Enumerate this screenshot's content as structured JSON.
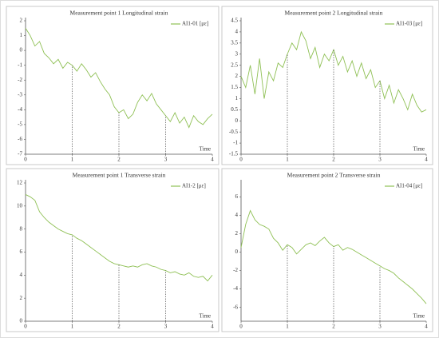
{
  "chart_data": [
    {
      "type": "line",
      "title": "Measurement point 1   Longitudinal strain",
      "x_label": "Time",
      "x": [
        0,
        0.1,
        0.2,
        0.3,
        0.4,
        0.5,
        0.6,
        0.7,
        0.8,
        0.9,
        1,
        1.1,
        1.2,
        1.3,
        1.4,
        1.5,
        1.6,
        1.7,
        1.8,
        1.9,
        2,
        2.1,
        2.2,
        2.3,
        2.4,
        2.5,
        2.6,
        2.7,
        2.8,
        2.9,
        3,
        3.1,
        3.2,
        3.3,
        3.4,
        3.5,
        3.6,
        3.7,
        3.8,
        3.9,
        4
      ],
      "series": [
        {
          "name": "AI1-01 [με]",
          "color": "#8fc055",
          "values": [
            1.5,
            1.0,
            0.3,
            0.6,
            -0.2,
            -0.5,
            -0.9,
            -0.6,
            -1.2,
            -0.8,
            -1.0,
            -1.4,
            -0.9,
            -1.3,
            -1.8,
            -1.5,
            -2.1,
            -2.6,
            -3.0,
            -3.8,
            -4.2,
            -4.0,
            -4.6,
            -4.3,
            -3.5,
            -3.0,
            -3.4,
            -2.9,
            -3.6,
            -4.0,
            -4.4,
            -4.8,
            -4.2,
            -4.9,
            -4.5,
            -5.2,
            -4.4,
            -4.8,
            -5.0,
            -4.6,
            -4.3
          ]
        }
      ],
      "xlim": [
        0,
        4
      ],
      "xticks": [
        0,
        1,
        2,
        3,
        4
      ],
      "ylim": [
        -7,
        2
      ],
      "yticks": [
        -7,
        -6,
        -5,
        -4,
        -3,
        -2,
        -1,
        0,
        1,
        2
      ],
      "vlines": [
        1,
        2,
        3
      ],
      "legend": "upper right"
    },
    {
      "type": "line",
      "title": "Measurement point 2   Longitudinal strain",
      "x_label": "Time",
      "x": [
        0,
        0.1,
        0.2,
        0.3,
        0.4,
        0.5,
        0.6,
        0.7,
        0.8,
        0.9,
        1,
        1.1,
        1.2,
        1.3,
        1.4,
        1.5,
        1.6,
        1.7,
        1.8,
        1.9,
        2,
        2.1,
        2.2,
        2.3,
        2.4,
        2.5,
        2.6,
        2.7,
        2.8,
        2.9,
        3,
        3.1,
        3.2,
        3.3,
        3.4,
        3.5,
        3.6,
        3.7,
        3.8,
        3.9,
        4
      ],
      "series": [
        {
          "name": "AI1-03 [με]",
          "color": "#8fc055",
          "values": [
            2.0,
            1.5,
            2.5,
            1.2,
            2.8,
            1.0,
            2.2,
            1.8,
            2.6,
            2.4,
            3.0,
            3.5,
            3.2,
            4.0,
            3.6,
            2.8,
            3.3,
            2.4,
            3.0,
            2.7,
            3.2,
            2.5,
            2.9,
            2.2,
            2.7,
            2.0,
            2.6,
            1.9,
            2.3,
            1.5,
            1.8,
            1.0,
            1.6,
            0.8,
            1.4,
            1.0,
            0.5,
            1.2,
            0.7,
            0.4,
            0.5
          ]
        }
      ],
      "xlim": [
        0,
        4
      ],
      "xticks": [
        0,
        1,
        2,
        3,
        4
      ],
      "ylim": [
        -1.5,
        4.5
      ],
      "yticks": [
        -1.5,
        -1,
        -0.5,
        0,
        0.5,
        1,
        1.5,
        2,
        2.5,
        3,
        3.5,
        4,
        4.5
      ],
      "vlines": [
        1,
        2,
        3
      ],
      "legend": "upper right"
    },
    {
      "type": "line",
      "title": "Measurement point 1   Transverse strain",
      "x_label": "Time",
      "x": [
        0,
        0.1,
        0.2,
        0.3,
        0.4,
        0.5,
        0.6,
        0.7,
        0.8,
        0.9,
        1,
        1.1,
        1.2,
        1.3,
        1.4,
        1.5,
        1.6,
        1.7,
        1.8,
        1.9,
        2,
        2.1,
        2.2,
        2.3,
        2.4,
        2.5,
        2.6,
        2.7,
        2.8,
        2.9,
        3,
        3.1,
        3.2,
        3.3,
        3.4,
        3.5,
        3.6,
        3.7,
        3.8,
        3.9,
        4
      ],
      "series": [
        {
          "name": "AI1-2 [με]",
          "color": "#8fc055",
          "values": [
            11,
            10.8,
            10.5,
            9.5,
            9.0,
            8.6,
            8.3,
            8.0,
            7.8,
            7.6,
            7.5,
            7.2,
            7.0,
            6.7,
            6.4,
            6.1,
            5.8,
            5.5,
            5.2,
            5.0,
            4.9,
            4.8,
            4.7,
            4.8,
            4.7,
            4.9,
            5.0,
            4.8,
            4.7,
            4.5,
            4.4,
            4.2,
            4.3,
            4.1,
            4.0,
            4.2,
            3.9,
            3.8,
            3.9,
            3.5,
            4.0
          ]
        }
      ],
      "xlim": [
        0,
        4
      ],
      "xticks": [
        0,
        1,
        2,
        3,
        4
      ],
      "ylim": [
        0,
        12
      ],
      "yticks": [
        0,
        2,
        4,
        6,
        8,
        10,
        12
      ],
      "vlines": [
        1,
        2,
        3
      ],
      "legend": "upper right"
    },
    {
      "type": "line",
      "title": "Measurement point 2   Transverse strain",
      "x_label": "Time",
      "x": [
        0,
        0.1,
        0.2,
        0.3,
        0.4,
        0.5,
        0.6,
        0.7,
        0.8,
        0.9,
        1,
        1.1,
        1.2,
        1.3,
        1.4,
        1.5,
        1.6,
        1.7,
        1.8,
        1.9,
        2,
        2.1,
        2.2,
        2.3,
        2.4,
        2.5,
        2.6,
        2.7,
        2.8,
        2.9,
        3,
        3.1,
        3.2,
        3.3,
        3.4,
        3.5,
        3.6,
        3.7,
        3.8,
        3.9,
        4
      ],
      "series": [
        {
          "name": "AI1-04 [με]",
          "color": "#8fc055",
          "values": [
            0.5,
            3,
            4.5,
            3.5,
            3.0,
            2.8,
            2.5,
            1.5,
            1.0,
            0.2,
            0.8,
            0.5,
            -0.2,
            0.3,
            0.8,
            1.0,
            0.7,
            1.2,
            1.6,
            1.0,
            0.6,
            0.8,
            0.2,
            0.5,
            0.3,
            0.0,
            -0.3,
            -0.6,
            -0.9,
            -1.2,
            -1.5,
            -1.8,
            -2.0,
            -2.3,
            -2.8,
            -3.2,
            -3.6,
            -4.0,
            -4.5,
            -5.0,
            -5.6
          ]
        }
      ],
      "xlim": [
        0,
        4
      ],
      "xticks": [
        0,
        1,
        2,
        3,
        4
      ],
      "ylim": [
        -7.5,
        7.5
      ],
      "yticks": [
        -6,
        -4,
        -2,
        0,
        2,
        4,
        6
      ],
      "vlines": [
        1,
        2,
        3
      ],
      "legend": "upper right"
    }
  ]
}
